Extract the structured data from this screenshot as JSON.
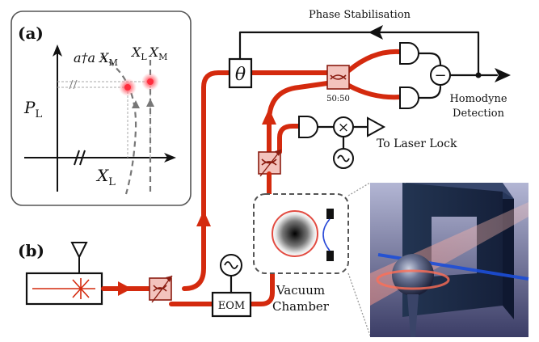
{
  "panel_a": {
    "label": "(a)",
    "curve_label_left": "a†a X",
    "curve_label_left_sub": "M",
    "curve_label_right": "X",
    "curve_label_right_sub1": "L",
    "curve_label_right_mid": "X",
    "curve_label_right_sub2": "M",
    "y_axis_label": "P",
    "y_axis_sub": "L",
    "x_axis_label": "X",
    "x_axis_sub": "L"
  },
  "panel_b": {
    "label": "(b)"
  },
  "labels": {
    "phase_stabilisation": "Phase Stabilisation",
    "theta": "θ",
    "splitter_ratio": "50:50",
    "homodyne_line1": "Homodyne",
    "homodyne_line2": "Detection",
    "laser_lock": "To Laser Lock",
    "eom": "EOM",
    "vacuum_line1": "Vacuum",
    "vacuum_line2": "Chamber",
    "minus": "−",
    "times": "×"
  },
  "colors": {
    "beam": "#d42a0e",
    "component_fill": "#f3c3bd",
    "render_bg_top": "#b3b6d4",
    "render_bg_bottom": "#3b3d66",
    "frame": "#1d2942",
    "cavity_blue": "#1c4ed8"
  },
  "icons": [
    "laser-source-icon",
    "antenna-icon",
    "oscillator-icon",
    "mixer-icon",
    "photodetector-icon",
    "amplifier-icon",
    "beam-splitter-icon",
    "variable-beam-splitter-icon",
    "direction-arrow-icon"
  ]
}
